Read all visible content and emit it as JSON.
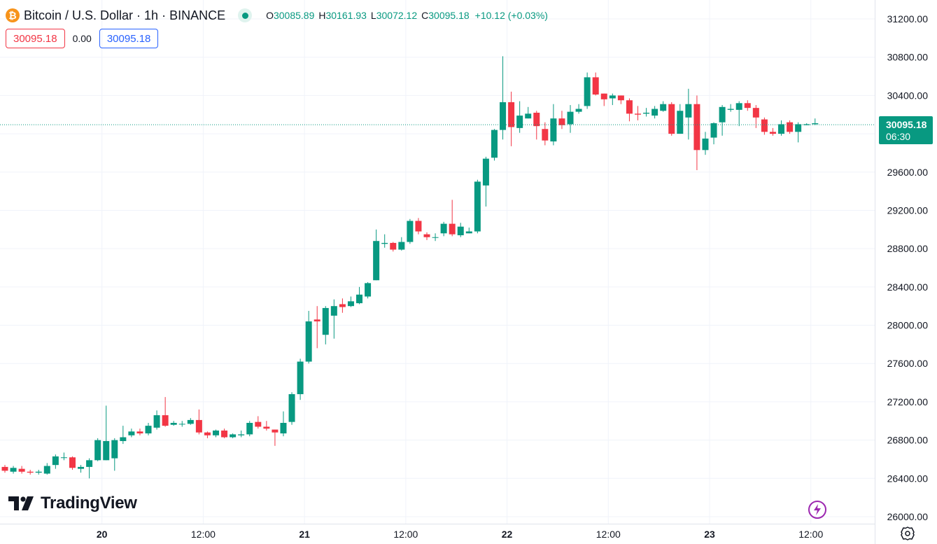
{
  "header": {
    "coin_icon": "bitcoin-icon",
    "coin_glyph": "₿",
    "title": "Bitcoin / U.S. Dollar · 1h · BINANCE",
    "open_label": "O",
    "open": "30085.89",
    "high_label": "H",
    "high": "30161.93",
    "low_label": "L",
    "low": "30072.12",
    "close_label": "C",
    "close": "30095.18",
    "change": "+10.12 (+0.03%)"
  },
  "quote": {
    "bid": "30095.18",
    "spread": "0.00",
    "ask": "30095.18"
  },
  "price_tag": {
    "price": "30095.18",
    "countdown": "06:30"
  },
  "brand": {
    "name": "TradingView"
  },
  "colors": {
    "up": "#089981",
    "down": "#f23645",
    "grid": "#f0f3fa",
    "text": "#131722"
  },
  "chart_data": {
    "type": "candlestick",
    "title": "Bitcoin / U.S. Dollar · 1h · BINANCE",
    "ylim": [
      26000,
      31200
    ],
    "y_ticks": [
      "26000.00",
      "26400.00",
      "26800.00",
      "27200.00",
      "27600.00",
      "28000.00",
      "28400.00",
      "28800.00",
      "29200.00",
      "29600.00",
      "30000.00",
      "30400.00",
      "30800.00",
      "31200.00"
    ],
    "x_ticks": [
      "20",
      "12:00",
      "21",
      "12:00",
      "22",
      "12:00",
      "23",
      "12:00"
    ],
    "x_tick_index": [
      11.5,
      23.5,
      35.5,
      47.5,
      59.5,
      71.5,
      83.5,
      95.5
    ],
    "current_price": 30095.18,
    "candles": [
      [
        26520,
        26480,
        26540,
        26460
      ],
      [
        26470,
        26510,
        26530,
        26450
      ],
      [
        26500,
        26470,
        26530,
        26450
      ],
      [
        26470,
        26460,
        26490,
        26440
      ],
      [
        26460,
        26470,
        26490,
        26440
      ],
      [
        26450,
        26530,
        26560,
        26440
      ],
      [
        26540,
        26630,
        26650,
        26500
      ],
      [
        26620,
        26620,
        26670,
        26590
      ],
      [
        26620,
        26510,
        26630,
        26490
      ],
      [
        26500,
        26520,
        26540,
        26460
      ],
      [
        26520,
        26590,
        26610,
        26400
      ],
      [
        26590,
        26800,
        26820,
        26580
      ],
      [
        26590,
        26790,
        27160,
        26590
      ],
      [
        26610,
        26800,
        26820,
        26480
      ],
      [
        26790,
        26830,
        26950,
        26760
      ],
      [
        26850,
        26890,
        26920,
        26830
      ],
      [
        26890,
        26870,
        26920,
        26850
      ],
      [
        26870,
        26950,
        26980,
        26850
      ],
      [
        26930,
        27060,
        27110,
        26910
      ],
      [
        27060,
        26950,
        27250,
        26940
      ],
      [
        26960,
        26980,
        27000,
        26950
      ],
      [
        26970,
        26970,
        27000,
        26940
      ],
      [
        26970,
        27010,
        27030,
        26960
      ],
      [
        27010,
        26880,
        27120,
        26860
      ],
      [
        26880,
        26850,
        26890,
        26820
      ],
      [
        26850,
        26900,
        26910,
        26830
      ],
      [
        26900,
        26830,
        26920,
        26820
      ],
      [
        26830,
        26860,
        26870,
        26820
      ],
      [
        26850,
        26860,
        26900,
        26830
      ],
      [
        26860,
        26980,
        27000,
        26840
      ],
      [
        26990,
        26940,
        27050,
        26920
      ],
      [
        26940,
        26920,
        27000,
        26900
      ],
      [
        26910,
        26880,
        26910,
        26740
      ],
      [
        26870,
        26980,
        27100,
        26840
      ],
      [
        26990,
        27280,
        27300,
        26960
      ],
      [
        27280,
        27620,
        27650,
        27220
      ],
      [
        27620,
        28040,
        28150,
        27600
      ],
      [
        28060,
        28040,
        28200,
        27760
      ],
      [
        27900,
        28180,
        28200,
        27800
      ],
      [
        28100,
        28200,
        28270,
        27860
      ],
      [
        28220,
        28190,
        28280,
        28130
      ],
      [
        28200,
        28250,
        28300,
        28190
      ],
      [
        28230,
        28320,
        28400,
        28220
      ],
      [
        28300,
        28440,
        28450,
        28280
      ],
      [
        28470,
        28880,
        29000,
        28470
      ],
      [
        28850,
        28860,
        28950,
        28810
      ],
      [
        28860,
        28790,
        28870,
        28770
      ],
      [
        28790,
        28870,
        28920,
        28780
      ],
      [
        28870,
        29090,
        29110,
        28850
      ],
      [
        29090,
        28980,
        29120,
        28950
      ],
      [
        28950,
        28920,
        28970,
        28890
      ],
      [
        28920,
        28920,
        28960,
        28880
      ],
      [
        28960,
        29060,
        29080,
        28930
      ],
      [
        29060,
        28950,
        29310,
        28930
      ],
      [
        28940,
        29030,
        29070,
        28920
      ],
      [
        28960,
        28980,
        29020,
        28960
      ],
      [
        28980,
        29500,
        29520,
        28960
      ],
      [
        29460,
        29740,
        29760,
        29240
      ],
      [
        29750,
        30040,
        30050,
        29720
      ],
      [
        30040,
        30330,
        30810,
        29940
      ],
      [
        30330,
        30070,
        30440,
        29870
      ],
      [
        30060,
        30190,
        30340,
        30010
      ],
      [
        30160,
        30210,
        30280,
        30160
      ],
      [
        30220,
        30080,
        30240,
        29940
      ],
      [
        30050,
        29930,
        30120,
        29880
      ],
      [
        29920,
        30160,
        30310,
        29880
      ],
      [
        30160,
        30090,
        30240,
        30050
      ],
      [
        30100,
        30230,
        30300,
        30010
      ],
      [
        30230,
        30260,
        30310,
        30210
      ],
      [
        30290,
        30590,
        30640,
        30260
      ],
      [
        30590,
        30410,
        30640,
        30400
      ],
      [
        30420,
        30360,
        30420,
        30290
      ],
      [
        30370,
        30400,
        30420,
        30300
      ],
      [
        30400,
        30350,
        30400,
        30310
      ],
      [
        30350,
        30210,
        30370,
        30130
      ],
      [
        30210,
        30200,
        30290,
        30140
      ],
      [
        30210,
        30220,
        30270,
        30180
      ],
      [
        30190,
        30260,
        30290,
        30160
      ],
      [
        30240,
        30310,
        30340,
        30230
      ],
      [
        30310,
        30000,
        30330,
        29980
      ],
      [
        30000,
        30240,
        30310,
        30000
      ],
      [
        30170,
        30310,
        30470,
        29940
      ],
      [
        30310,
        29830,
        30400,
        29620
      ],
      [
        29830,
        29950,
        30020,
        29780
      ],
      [
        29960,
        30110,
        30120,
        29890
      ],
      [
        30120,
        30280,
        30300,
        29980
      ],
      [
        30250,
        30260,
        30310,
        30230
      ],
      [
        30250,
        30320,
        30340,
        30080
      ],
      [
        30320,
        30270,
        30350,
        30240
      ],
      [
        30270,
        30170,
        30300,
        30060
      ],
      [
        30150,
        30020,
        30170,
        29990
      ],
      [
        30020,
        30000,
        30060,
        29980
      ],
      [
        30000,
        30100,
        30140,
        29980
      ],
      [
        30120,
        30020,
        30140,
        30000
      ],
      [
        30020,
        30100,
        30120,
        29910
      ],
      [
        30090,
        30100,
        30110,
        30090
      ],
      [
        30100,
        30110,
        30160,
        30090
      ]
    ]
  }
}
